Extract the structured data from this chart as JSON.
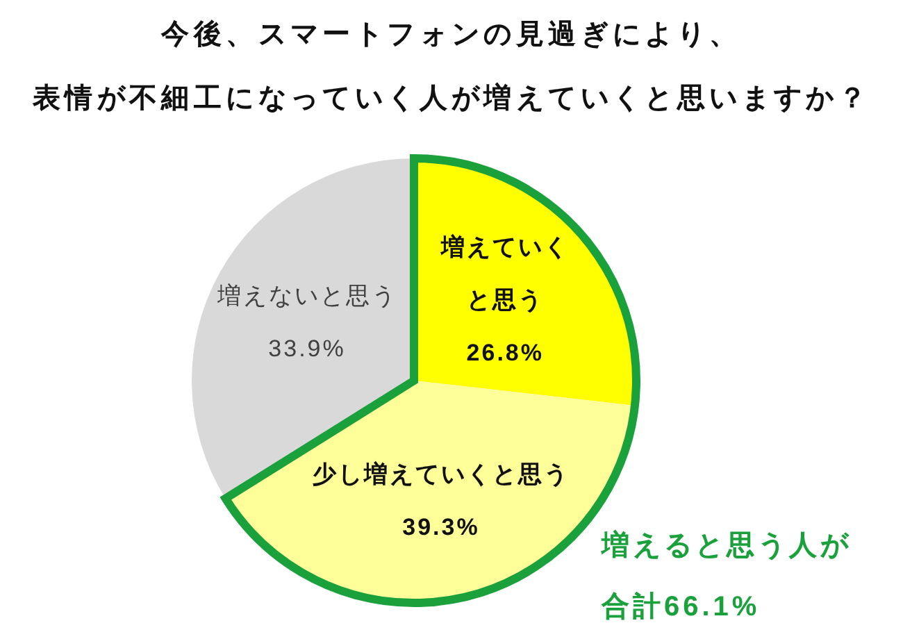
{
  "chart_data": {
    "type": "pie",
    "title": "今後、スマートフォンの見過ぎにより、表情が不細工になっていく人が増えていくと思いますか？",
    "categories": [
      "増えていくと思う",
      "少し増えていくと思う",
      "増えないと思う"
    ],
    "values": [
      26.8,
      39.3,
      33.9
    ],
    "colors": [
      "#ffff00",
      "#ffff99",
      "#d9d9d9"
    ],
    "value_labels": [
      "26.8%",
      "39.3%",
      "33.9%"
    ],
    "annotations": [
      "増えると思う人が合計66.1%"
    ]
  }
}
